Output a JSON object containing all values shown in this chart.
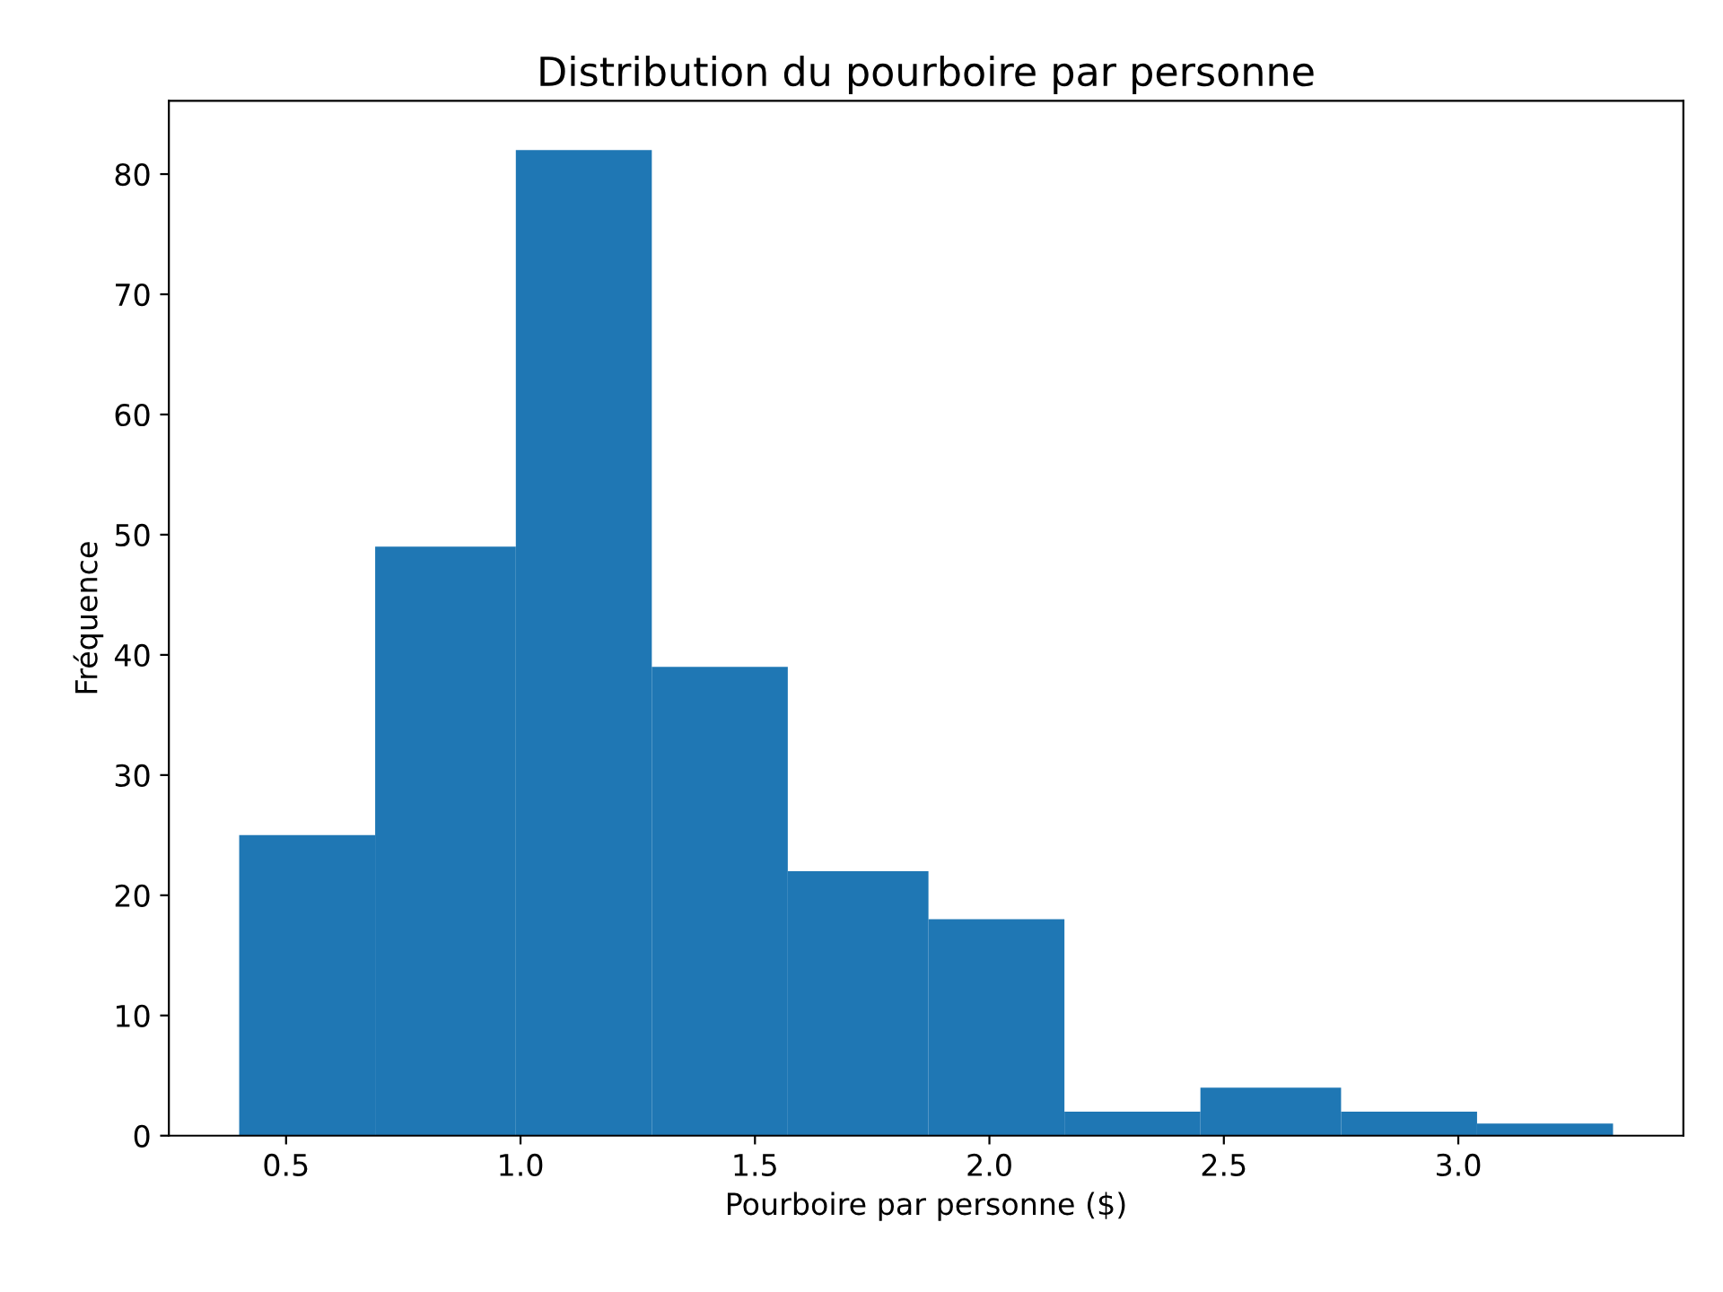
{
  "chart_data": {
    "type": "histogram",
    "title": "Distribution du pourboire par personne",
    "xlabel": "Pourboire par personne ($)",
    "ylabel": "Fréquence",
    "bins": [
      0.4,
      0.69,
      0.99,
      1.28,
      1.57,
      1.87,
      2.16,
      2.45,
      2.75,
      3.04,
      3.33
    ],
    "values": [
      25,
      49,
      82,
      39,
      22,
      18,
      2,
      4,
      2,
      1
    ],
    "color": "#1f77b4",
    "xlim": [
      0.25,
      3.48
    ],
    "xticks": [
      {
        "value": 0.5,
        "label": "0.5"
      },
      {
        "value": 1.0,
        "label": "1.0"
      },
      {
        "value": 1.5,
        "label": "1.5"
      },
      {
        "value": 2.0,
        "label": "2.0"
      },
      {
        "value": 2.5,
        "label": "2.5"
      },
      {
        "value": 3.0,
        "label": "3.0"
      }
    ],
    "ylim": [
      0,
      86.1
    ],
    "yticks": [
      0,
      10,
      20,
      30,
      40,
      50,
      60,
      70,
      80
    ],
    "grid": false
  }
}
